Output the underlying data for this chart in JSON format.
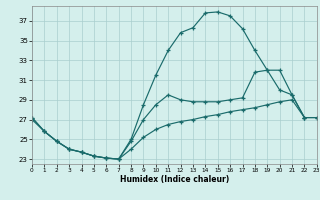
{
  "xlabel": "Humidex (Indice chaleur)",
  "bg_color": "#d4efec",
  "grid_color": "#aacece",
  "line_color": "#1a6b6b",
  "xlim": [
    0,
    23
  ],
  "ylim": [
    22.5,
    38.5
  ],
  "yticks": [
    23,
    25,
    27,
    29,
    31,
    33,
    35,
    37
  ],
  "xticks": [
    0,
    1,
    2,
    3,
    4,
    5,
    6,
    7,
    8,
    9,
    10,
    11,
    12,
    13,
    14,
    15,
    16,
    17,
    18,
    19,
    20,
    21,
    22,
    23
  ],
  "curve1_x": [
    0,
    1,
    2,
    3,
    4,
    5,
    6,
    7,
    8,
    9,
    10,
    11,
    12,
    13,
    14,
    15,
    16,
    17,
    18,
    19,
    20,
    21,
    22
  ],
  "curve1_y": [
    27.2,
    25.8,
    24.8,
    24.0,
    23.7,
    23.3,
    23.1,
    23.0,
    25.0,
    28.5,
    31.5,
    34.0,
    35.8,
    36.3,
    37.8,
    37.9,
    37.5,
    36.2,
    34.0,
    32.0,
    32.0,
    29.5,
    27.2
  ],
  "curve2_x": [
    0,
    1,
    2,
    3,
    4,
    5,
    6,
    7,
    8,
    9,
    10,
    11,
    12,
    13,
    14,
    15,
    16,
    17,
    18,
    19,
    20,
    21,
    22,
    23
  ],
  "curve2_y": [
    27.2,
    25.8,
    24.8,
    24.0,
    23.7,
    23.3,
    23.1,
    23.0,
    24.8,
    27.0,
    28.5,
    29.5,
    29.0,
    28.8,
    28.8,
    28.8,
    29.0,
    29.2,
    31.8,
    32.0,
    30.0,
    29.5,
    27.2,
    27.2
  ],
  "curve3_x": [
    0,
    1,
    2,
    3,
    4,
    5,
    6,
    7,
    8,
    9,
    10,
    11,
    12,
    13,
    14,
    15,
    16,
    17,
    18,
    19,
    20,
    21,
    22,
    23
  ],
  "curve3_y": [
    27.0,
    25.8,
    24.8,
    24.0,
    23.7,
    23.3,
    23.1,
    23.0,
    24.0,
    25.2,
    26.0,
    26.5,
    26.8,
    27.0,
    27.3,
    27.5,
    27.8,
    28.0,
    28.2,
    28.5,
    28.8,
    29.0,
    27.2,
    27.2
  ]
}
